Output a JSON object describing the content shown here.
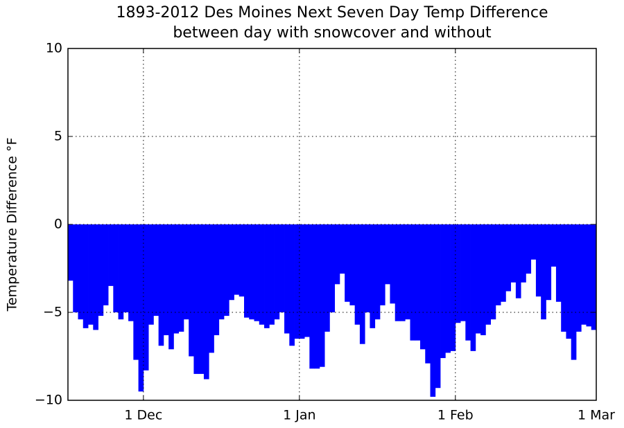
{
  "chart_data": {
    "type": "bar",
    "title": [
      "1893-2012 Des Moines Next Seven Day Temp Difference",
      "between day with snowcover and without"
    ],
    "y_label": "Temperature Difference °F",
    "x": [
      -15,
      -14,
      -13,
      -12,
      -11,
      -10,
      -9,
      -8,
      -7,
      -6,
      -5,
      -4,
      -3,
      -2,
      -1,
      0,
      1,
      2,
      3,
      4,
      5,
      6,
      7,
      8,
      9,
      10,
      11,
      12,
      13,
      14,
      15,
      16,
      17,
      18,
      19,
      20,
      21,
      22,
      23,
      24,
      25,
      26,
      27,
      28,
      29,
      30,
      31,
      32,
      33,
      34,
      35,
      36,
      37,
      38,
      39,
      40,
      41,
      42,
      43,
      44,
      45,
      46,
      47,
      48,
      49,
      50,
      51,
      52,
      53,
      54,
      55,
      56,
      57,
      58,
      59,
      60,
      61,
      62,
      63,
      64,
      65,
      66,
      67,
      68,
      69,
      70,
      71,
      72,
      73,
      74,
      75,
      76,
      77,
      78,
      79,
      80,
      81,
      82,
      83,
      84,
      85,
      86,
      87,
      88,
      89
    ],
    "values": [
      -3.2,
      -5.0,
      -5.4,
      -5.9,
      -5.7,
      -6.0,
      -5.2,
      -4.6,
      -3.5,
      -5.0,
      -5.4,
      -5.0,
      -5.5,
      -7.7,
      -9.5,
      -8.3,
      -5.7,
      -5.2,
      -6.9,
      -6.3,
      -7.1,
      -6.2,
      -6.1,
      -5.4,
      -7.5,
      -8.5,
      -8.5,
      -8.8,
      -7.3,
      -6.3,
      -5.4,
      -5.2,
      -4.3,
      -4.0,
      -4.1,
      -5.3,
      -5.4,
      -5.5,
      -5.7,
      -5.9,
      -5.7,
      -5.4,
      -5.0,
      -6.2,
      -6.9,
      -6.5,
      -6.5,
      -6.4,
      -8.2,
      -8.2,
      -8.1,
      -6.1,
      -5.0,
      -3.4,
      -2.8,
      -4.4,
      -4.6,
      -5.7,
      -6.8,
      -5.0,
      -5.9,
      -5.4,
      -4.6,
      -3.4,
      -4.5,
      -5.5,
      -5.5,
      -5.4,
      -6.6,
      -6.6,
      -7.1,
      -7.9,
      -9.8,
      -9.3,
      -7.6,
      -7.3,
      -7.2,
      -5.6,
      -5.5,
      -6.6,
      -7.2,
      -6.2,
      -6.3,
      -5.7,
      -5.4,
      -4.6,
      -4.4,
      -3.8,
      -3.3,
      -4.2,
      -3.3,
      -2.8,
      -2.0,
      -4.1,
      -5.4,
      -4.3,
      -2.4,
      -4.4,
      -6.1,
      -6.5,
      -7.7,
      -6.1,
      -5.7,
      -5.8,
      -6.0
    ],
    "color": "#0000ff",
    "xlim": [
      -15,
      90
    ],
    "xticks": [
      {
        "value": 0,
        "label": "1 Dec"
      },
      {
        "value": 31,
        "label": "1 Jan"
      },
      {
        "value": 62,
        "label": "1 Feb"
      },
      {
        "value": 90,
        "label": "1 Mar"
      }
    ],
    "ylim": [
      -10,
      10
    ],
    "yticks": [
      {
        "value": -10,
        "label": "−10"
      },
      {
        "value": -5,
        "label": "−5"
      },
      0,
      5,
      10
    ],
    "grid": true
  }
}
